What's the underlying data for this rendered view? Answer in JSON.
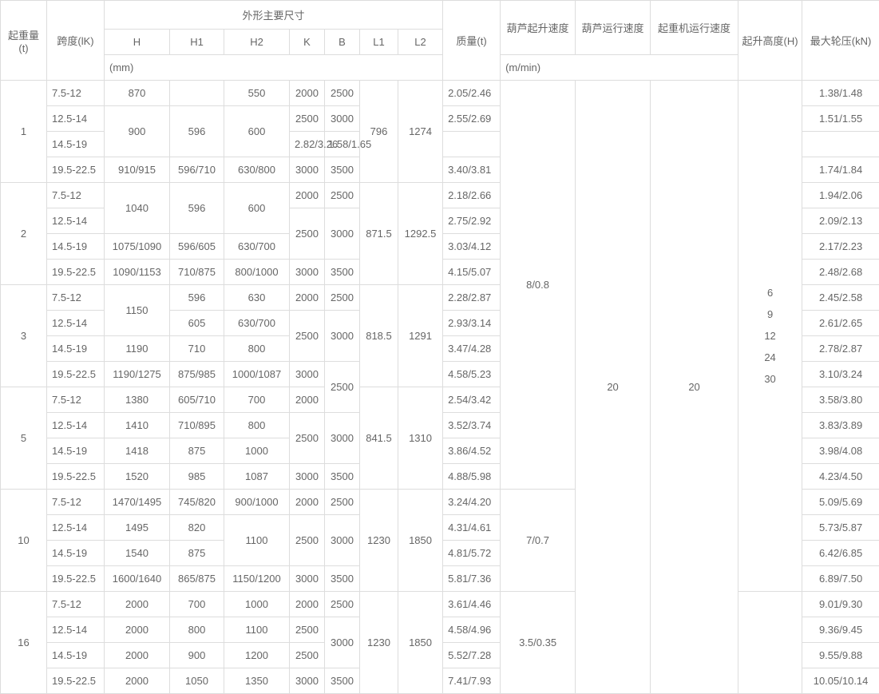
{
  "headers": {
    "lift_capacity": "起重量(t)",
    "span": "跨度(lK)",
    "main_dims": "外形主要尺寸",
    "H": "H",
    "H1": "H1",
    "H2": "H2",
    "K": "K",
    "B": "B",
    "L1": "L1",
    "L2": "L2",
    "mm": "(mm)",
    "mass": "质量(t)",
    "hoist_lift_speed": "葫芦起升速度",
    "hoist_travel_speed": "葫芦运行速度",
    "crane_travel_speed": "起重机运行速度",
    "m_min": "(m/min)",
    "lift_height": "起升高度(H)",
    "max_wheel_pressure": "最大轮压(kN)"
  },
  "shared": {
    "hoist_lift_speed_a": "8/0.8",
    "hoist_lift_speed_b": "7/0.7",
    "hoist_lift_speed_c": "3.5/0.35",
    "hoist_travel_speed": "20",
    "crane_travel_speed": "20",
    "lift_heights": [
      "6",
      "9",
      "12",
      "24",
      "30"
    ]
  },
  "groups": [
    {
      "capacity": "1",
      "L1": "796",
      "L2": "1274",
      "rows": [
        {
          "span": "7.5-12",
          "H": "870",
          "H1": "",
          "H2": "550",
          "K": "2000",
          "B": "2500",
          "mass": "2.05/2.46",
          "wp": "1.38/1.48"
        },
        {
          "span": "12.5-14",
          "H": "900",
          "H1": "596",
          "H2": "600",
          "K": "2500",
          "B": "3000",
          "mass": "2.55/2.69",
          "wp": "1.51/1.55",
          "H_rs": 2,
          "H1_rs": 2,
          "H2_rs": 2
        },
        {
          "span": "14.5-19",
          "mass": "2.82/3.26",
          "wp": "1.58/1.65"
        },
        {
          "span": "19.5-22.5",
          "H": "910/915",
          "H1": "596/710",
          "H2": "630/800",
          "K": "3000",
          "B": "3500",
          "mass": "3.40/3.81",
          "wp": "1.74/1.84"
        }
      ]
    },
    {
      "capacity": "2",
      "L1": "871.5",
      "L2": "1292.5",
      "rows": [
        {
          "span": "7.5-12",
          "H": "1040",
          "H1": "596",
          "H2": "600",
          "K": "2000",
          "B": "2500",
          "mass": "2.18/2.66",
          "wp": "1.94/2.06",
          "H_rs": 2,
          "H1_rs": 2,
          "H2_rs": 2
        },
        {
          "span": "12.5-14",
          "K": "2500",
          "B": "3000",
          "mass": "2.75/2.92",
          "wp": "2.09/2.13",
          "K_rs": 2,
          "B_rs": 2
        },
        {
          "span": "14.5-19",
          "H": "1075/1090",
          "H1": "596/605",
          "H2": "630/700",
          "mass": "3.03/4.12",
          "wp": "2.17/2.23"
        },
        {
          "span": "19.5-22.5",
          "H": "1090/1153",
          "H1": "710/875",
          "H2": "800/1000",
          "K": "3000",
          "B": "3500",
          "mass": "4.15/5.07",
          "wp": "2.48/2.68"
        }
      ]
    },
    {
      "capacity": "3",
      "L1": "818.5",
      "L2": "1291",
      "rows": [
        {
          "span": "7.5-12",
          "H": "1150",
          "H1": "596",
          "H2": "630",
          "K": "2000",
          "B": "2500",
          "mass": "2.28/2.87",
          "wp": "2.45/2.58",
          "H_rs": 2
        },
        {
          "span": "12.5-14",
          "H1": "605",
          "H2": "630/700",
          "K": "2500",
          "B": "3000",
          "mass": "2.93/3.14",
          "wp": "2.61/2.65",
          "K_rs": 2,
          "B_rs": 2
        },
        {
          "span": "14.5-19",
          "H": "1190",
          "H1": "710",
          "H2": "800",
          "mass": "3.47/4.28",
          "wp": "2.78/2.87"
        },
        {
          "span": "19.5-22.5",
          "H": "1190/1275",
          "H1": "875/985",
          "H2": "1000/1087",
          "K": "3000",
          "B": "2500",
          "mass": "4.58/5.23",
          "wp": "3.10/3.24",
          "B_rs": 2
        }
      ]
    },
    {
      "capacity": "5",
      "L1": "841.5",
      "L2": "1310",
      "rows": [
        {
          "span": "7.5-12",
          "H": "1380",
          "H1": "605/710",
          "H2": "700",
          "K": "2000",
          "mass": "2.54/3.42",
          "wp": "3.58/3.80"
        },
        {
          "span": "12.5-14",
          "H": "1410",
          "H1": "710/895",
          "H2": "800",
          "K": "2500",
          "B": "3000",
          "mass": "3.52/3.74",
          "wp": "3.83/3.89",
          "K_rs": 2,
          "B_rs": 2
        },
        {
          "span": "14.5-19",
          "H": "1418",
          "H1": "875",
          "H2": "1000",
          "mass": "3.86/4.52",
          "wp": "3.98/4.08"
        },
        {
          "span": "19.5-22.5",
          "H": "1520",
          "H1": "985",
          "H2": "1087",
          "K": "3000",
          "B": "3500",
          "mass": "4.88/5.98",
          "wp": "4.23/4.50"
        }
      ]
    },
    {
      "capacity": "10",
      "L1": "1230",
      "L2": "1850",
      "rows": [
        {
          "span": "7.5-12",
          "H": "1470/1495",
          "H1": "745/820",
          "H2": "900/1000",
          "K": "2000",
          "B": "2500",
          "mass": "3.24/4.20",
          "wp": "5.09/5.69"
        },
        {
          "span": "12.5-14",
          "H": "1495",
          "H1": "820",
          "H2": "1100",
          "K": "2500",
          "B": "3000",
          "mass": "4.31/4.61",
          "wp": "5.73/5.87",
          "H2_rs": 2,
          "K_rs": 2,
          "B_rs": 2
        },
        {
          "span": "14.5-19",
          "H": "1540",
          "H1": "875",
          "mass": "4.81/5.72",
          "wp": "6.42/6.85"
        },
        {
          "span": "19.5-22.5",
          "H": "1600/1640",
          "H1": "865/875",
          "H2": "1150/1200",
          "K": "3000",
          "B": "3500",
          "mass": "5.81/7.36",
          "wp": "6.89/7.50"
        }
      ]
    },
    {
      "capacity": "16",
      "L1": "1230",
      "L2": "1850",
      "rows": [
        {
          "span": "7.5-12",
          "H": "2000",
          "H1": "700",
          "H2": "1000",
          "K": "2000",
          "B": "2500",
          "mass": "3.61/4.46",
          "wp": "9.01/9.30"
        },
        {
          "span": "12.5-14",
          "H": "2000",
          "H1": "800",
          "H2": "1100",
          "K": "2500",
          "B": "3000",
          "mass": "4.58/4.96",
          "wp": "9.36/9.45",
          "B_rs": 2
        },
        {
          "span": "14.5-19",
          "H": "2000",
          "H1": "900",
          "H2": "1200",
          "K": "2500",
          "mass": "5.52/7.28",
          "wp": "9.55/9.88"
        },
        {
          "span": "19.5-22.5",
          "H": "2000",
          "H1": "1050",
          "H2": "1350",
          "K": "3000",
          "B": "3500",
          "mass": "7.41/7.93",
          "wp": "10.05/10.14"
        }
      ]
    }
  ]
}
